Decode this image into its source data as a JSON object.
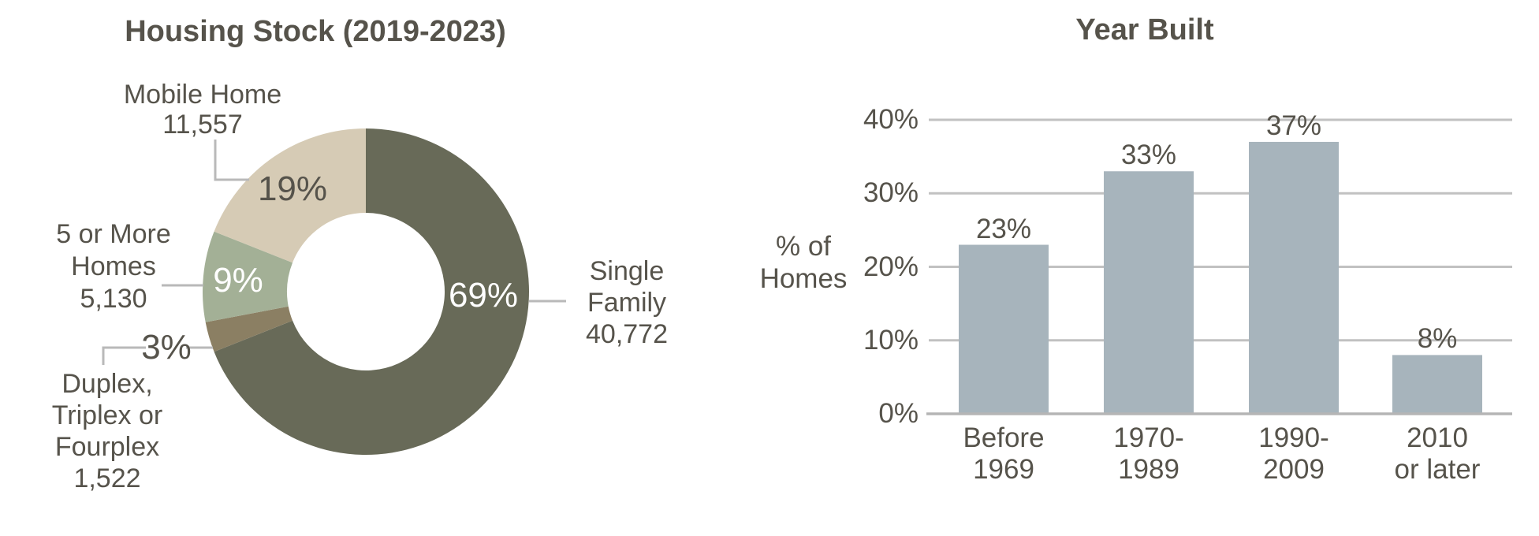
{
  "page": {
    "background": "#ffffff",
    "text_color": "#56534b"
  },
  "chart_data": [
    {
      "type": "pie",
      "subtype": "donut",
      "title": "Housing Stock (2019-2023)",
      "start_angle": "12 o'clock",
      "direction": "clockwise",
      "leader_line_color": "#b9b9b9",
      "segments": [
        {
          "label": "Single Family",
          "label_lines": [
            "Single",
            "Family",
            "40,772"
          ],
          "value": 40772,
          "value_label": "40,772",
          "percent": 69,
          "percent_label": "69%",
          "color": "#686a58",
          "percent_label_color": "#ffffff"
        },
        {
          "label": "Duplex, Triplex or Fourplex",
          "label_lines": [
            "Duplex,",
            "Triplex or",
            "Fourplex",
            "1,522"
          ],
          "value": 1522,
          "value_label": "1,522",
          "percent": 3,
          "percent_label": "3%",
          "color": "#8b7f63",
          "percent_label_color": "#56534b"
        },
        {
          "label": "5 or More Homes",
          "label_lines": [
            "5 or More",
            "Homes",
            "5,130"
          ],
          "value": 5130,
          "value_label": "5,130",
          "percent": 9,
          "percent_label": "9%",
          "color": "#a3b096",
          "percent_label_color": "#ffffff"
        },
        {
          "label": "Mobile Home",
          "label_lines": [
            "Mobile Home",
            "11,557"
          ],
          "value": 11557,
          "value_label": "11,557",
          "percent": 19,
          "percent_label": "19%",
          "color": "#d6cbb5",
          "percent_label_color": "#56534b"
        }
      ]
    },
    {
      "type": "bar",
      "title": "Year Built",
      "ylabel": "% of Homes",
      "ylabel_lines": [
        "% of",
        "Homes"
      ],
      "categories": [
        "Before 1969",
        "1970-1989",
        "1990-2009",
        "2010 or later"
      ],
      "category_lines": [
        [
          "Before",
          "1969"
        ],
        [
          "1970-",
          "1989"
        ],
        [
          "1990-",
          "2009"
        ],
        [
          "2010",
          "or later"
        ]
      ],
      "values": [
        23,
        33,
        37,
        8
      ],
      "value_labels": [
        "23%",
        "33%",
        "37%",
        "8%"
      ],
      "ylim": [
        0,
        40
      ],
      "ytick_labels": [
        "0%",
        "10%",
        "20%",
        "30%",
        "40%"
      ],
      "grid": true,
      "legend": false,
      "bar_color": "#a7b4bc",
      "gridline_color": "#c1c1c1",
      "axis_line_color": "#b5b5b5"
    }
  ]
}
